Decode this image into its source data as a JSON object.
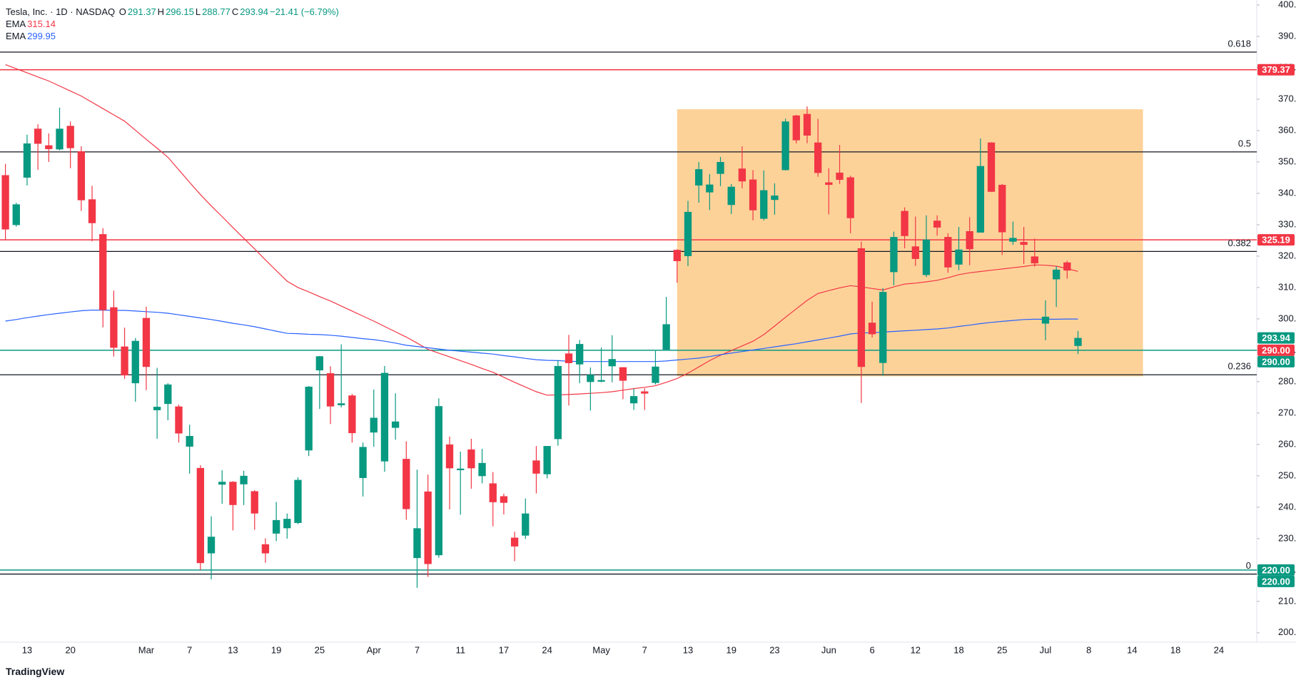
{
  "chart_data": {
    "type": "candlestick",
    "title": "Tesla, Inc. · 1D · NASDAQ",
    "ohlc_prefixes": [
      "O",
      "H",
      "L",
      "C"
    ],
    "change": "−21.41 (−6.79%)",
    "up_color": "#089981",
    "down_color": "#f23645",
    "categories": [
      null,
      null,
      "13",
      null,
      null,
      null,
      "20",
      null,
      null,
      null,
      null,
      null,
      null,
      "Mar",
      null,
      null,
      null,
      "7",
      null,
      null,
      null,
      "13",
      null,
      null,
      null,
      "19",
      null,
      null,
      null,
      "25",
      null,
      null,
      null,
      null,
      "Apr",
      null,
      null,
      null,
      "7",
      null,
      null,
      null,
      "11",
      null,
      null,
      null,
      "17",
      null,
      null,
      null,
      "24",
      null,
      null,
      null,
      null,
      "May",
      null,
      null,
      null,
      "7",
      null,
      null,
      null,
      "13",
      null,
      null,
      null,
      "19",
      null,
      null,
      null,
      "23",
      null,
      null,
      null,
      null,
      "Jun",
      null,
      null,
      null,
      "6",
      null,
      null,
      null,
      "12",
      null,
      null,
      null,
      "18",
      null,
      null,
      null,
      "25",
      null,
      null,
      null,
      "Jul",
      null,
      null,
      null,
      "8",
      null,
      null,
      null,
      "14",
      null,
      null,
      null,
      "18",
      null,
      null,
      null,
      "24",
      null,
      null,
      null
    ],
    "open": [
      345.8,
      329.9,
      345,
      360.6,
      355.3,
      354,
      361.5,
      353.4,
      338.1,
      327,
      303.7,
      291.2,
      279.5,
      300.3,
      270.9,
      272.9,
      272.1,
      259.3,
      252.5,
      225.3,
      247.2,
      248.1,
      247.3,
      245.1,
      228.2,
      231.6,
      233.3,
      234.98,
      258.1,
      283.6,
      282.7,
      272.5,
      275.6,
      249.3,
      263.8,
      254.6,
      265.3,
      255.4,
      223.8,
      245,
      224.7,
      260,
      251.8,
      258.4,
      249.9,
      247.6,
      243.5,
      230.3,
      230.96,
      254.9,
      250.5,
      261.7,
      288.98,
      285.5,
      279.9,
      280,
      284.9,
      284.6,
      273.1,
      276.9,
      279.6,
      290.2,
      321.99,
      320,
      342.5,
      340.3,
      346.2,
      336.3,
      347.9,
      344.4,
      331.9,
      337.9,
      347.4,
      364.8,
      365.3,
      356.2,
      343.5,
      346.6,
      345.1,
      322.5,
      298.8,
      285.96,
      314.9,
      334.4,
      323.1,
      313.97,
      331.3,
      326.1,
      317.3,
      327.95,
      327.5,
      356.2,
      342.7,
      324.6,
      324.5,
      319.9,
      298.5,
      312.6,
      317.99,
      291.37,
      null,
      null,
      null,
      null,
      null,
      null,
      null,
      null,
      null,
      null,
      null,
      null,
      null,
      null,
      null,
      null
    ],
    "high": [
      349.4,
      337,
      358.7,
      362,
      359.1,
      367.3,
      362.9,
      354.98,
      342.4,
      328.9,
      309,
      297.2,
      293.9,
      303.9,
      284.4,
      279.5,
      272.7,
      266.3,
      253.4,
      237.1,
      251.8,
      248.3,
      251.6,
      245.4,
      230.1,
      241.7,
      238,
      249.5,
      278.6,
      288.2,
      284.9,
      291.9,
      276.1,
      260.6,
      277.5,
      284.99,
      276.3,
      261,
      252,
      250.4,
      274.7,
      262.5,
      257.7,
      261.8,
      258.6,
      251.2,
      244.3,
      232.2,
      242.8,
      259.5,
      259.5,
      286.9,
      294.9,
      293.3,
      284.5,
      290.9,
      294.8,
      284.6,
      277.7,
      277.9,
      289.8,
      307,
      322.2,
      337.6,
      350,
      346.1,
      351.6,
      343,
      354.99,
      347.4,
      347.3,
      343.2,
      363.8,
      365,
      367.7,
      363.7,
      348,
      355.4,
      345.6,
      324.6,
      305.5,
      309.8,
      327.8,
      335.5,
      332.6,
      332.99,
      332.99,
      327.3,
      329.3,
      332.4,
      357.5,
      356.3,
      343,
      331,
      329.3,
      325.6,
      305.9,
      316.8,
      318.5,
      296.15,
      null,
      null,
      null,
      null,
      null,
      null,
      null,
      null,
      null,
      null,
      null,
      null,
      null,
      null,
      null,
      null
    ],
    "low": [
      325.1,
      329.4,
      342.5,
      347.5,
      350,
      353.7,
      348,
      334.4,
      324.7,
      297.3,
      288,
      280.9,
      273.6,
      277.3,
      261.8,
      267.7,
      260.6,
      250.7,
      220,
      217,
      241.1,
      232.6,
      240.7,
      232.8,
      222.3,
      229.2,
      230,
      234.6,
      256.3,
      271.3,
      266.5,
      271.8,
      260.6,
      243.4,
      259.3,
      251.3,
      261.5,
      236,
      214.3,
      217.8,
      223.9,
      239.3,
      237.6,
      245.9,
      247.6,
      233.9,
      237.7,
      222.8,
      229.9,
      244.4,
      249.2,
      259.6,
      272.4,
      279.5,
      270.8,
      279.8,
      279.8,
      274.4,
      271,
      271,
      279.1,
      290,
      311.5,
      316.8,
      337,
      334.7,
      342.3,
      333.4,
      341.6,
      331.4,
      331.4,
      333.2,
      347.3,
      355.9,
      356,
      345.3,
      333.3,
      343,
      327.3,
      273.2,
      294.1,
      281.9,
      310.7,
      322.5,
      316.9,
      313.3,
      326.5,
      314.7,
      315.5,
      317.1,
      327.5,
      340.4,
      320.4,
      323.6,
      317.5,
      316.6,
      293.2,
      303.8,
      312.8,
      288.77,
      null,
      null,
      null,
      null,
      null,
      null,
      null,
      null,
      null,
      null,
      null,
      null,
      null,
      null,
      null,
      null
    ],
    "close": [
      328.5,
      336.5,
      355.9,
      355.8,
      354.1,
      360.6,
      354.4,
      337.8,
      330.5,
      302.8,
      290.8,
      282,
      293,
      284.7,
      272,
      279.1,
      263.5,
      262.7,
      222.2,
      230.6,
      248.1,
      240.7,
      250,
      238,
      225.3,
      235.9,
      236.3,
      248.7,
      278.4,
      288.1,
      272.1,
      273.1,
      263.6,
      259.2,
      268.5,
      282.8,
      267.3,
      239.4,
      233.3,
      221.9,
      272.2,
      252.4,
      252.3,
      252.4,
      254.1,
      241.6,
      241.4,
      227.5,
      238,
      250.7,
      259.5,
      285,
      285.9,
      292,
      282.2,
      280.5,
      287.2,
      280.3,
      275.4,
      276.2,
      284.8,
      298.3,
      318.4,
      334.1,
      347.7,
      342.8,
      350,
      342.1,
      343.8,
      334.6,
      341,
      339.3,
      362.9,
      356.9,
      358.4,
      346.5,
      342.7,
      344.3,
      332.1,
      284.7,
      295.1,
      308.6,
      326.1,
      326.4,
      319.1,
      325.3,
      329.1,
      316.4,
      322.1,
      322.2,
      348.7,
      340.5,
      327.6,
      325.8,
      323.6,
      317.7,
      300.7,
      315.7,
      315.4,
      293.94,
      null,
      null,
      null,
      null,
      null,
      null,
      null,
      null,
      null,
      null,
      null,
      null,
      null,
      null,
      null,
      null
    ],
    "series": [
      {
        "name": "EMA",
        "color": "#f23645",
        "values": [
          381,
          379.7,
          378.4,
          377.1,
          375.8,
          374.2,
          372.6,
          371,
          369,
          367,
          365,
          363,
          360.1,
          357.2,
          354.4,
          351.5,
          347.5,
          343.5,
          339.6,
          336,
          332.6,
          329.1,
          325.7,
          322.3,
          318.8,
          315.4,
          312,
          310,
          308.6,
          307.1,
          305.7,
          304.1,
          302.5,
          300.9,
          299.3,
          297.6,
          295.9,
          294.2,
          292.3,
          290.3,
          289.1,
          287.9,
          286.7,
          285.5,
          284.2,
          283,
          281.4,
          279.8,
          278.3,
          276.8,
          275.7,
          275.8,
          275.9,
          276.1,
          276.3,
          276.5,
          276.8,
          277.3,
          277.8,
          278.2,
          278.7,
          279.8,
          281,
          282.7,
          284.7,
          286.7,
          288.4,
          289.9,
          291.4,
          292.9,
          295,
          297.7,
          300.5,
          303.2,
          305.9,
          308.1,
          309,
          309.9,
          310.6,
          310.2,
          309.7,
          309.2,
          310.2,
          311.1,
          311.4,
          311.8,
          312.3,
          313.1,
          314.1,
          314.7,
          315.1,
          315.5,
          315.9,
          316.3,
          316.7,
          317.2,
          317.1,
          316.8,
          316,
          315.14,
          null,
          null,
          null,
          null,
          null,
          null,
          null,
          null,
          null,
          null,
          null,
          null,
          null,
          null,
          null,
          null
        ]
      },
      {
        "name": "EMA",
        "color": "#2962ff",
        "values": [
          299.3,
          299.8,
          300.4,
          300.9,
          301.4,
          301.8,
          302.2,
          302.6,
          302.8,
          302.8,
          302.7,
          302.7,
          302.5,
          302.3,
          302.1,
          301.8,
          301.3,
          300.8,
          300.3,
          299.8,
          299.2,
          298.6,
          298.1,
          297.5,
          296.8,
          296.1,
          295.4,
          295.3,
          295.1,
          295,
          294.8,
          294.5,
          294.1,
          293.7,
          293.4,
          292.9,
          292.3,
          291.6,
          291.2,
          290.8,
          290.4,
          290,
          289.7,
          289.4,
          289.1,
          288.8,
          288.3,
          287.9,
          287.4,
          287,
          286.8,
          286.7,
          286.5,
          286.4,
          286.4,
          286.4,
          286.4,
          286.4,
          286.4,
          286.4,
          286.4,
          286.6,
          286.9,
          287.2,
          287.5,
          288,
          288.6,
          289.1,
          289.6,
          290.1,
          290.6,
          291.1,
          291.6,
          292.1,
          292.7,
          293.3,
          293.9,
          294.5,
          295.2,
          295.5,
          295.6,
          295.8,
          296,
          296.2,
          296.4,
          296.6,
          296.8,
          297.1,
          297.6,
          298,
          298.5,
          298.9,
          299.2,
          299.5,
          299.8,
          299.9,
          299.9,
          299.9,
          299.95,
          299.95,
          null,
          null,
          null,
          null,
          null,
          null,
          null,
          null,
          null,
          null,
          null,
          null,
          null,
          null,
          null,
          null
        ]
      }
    ],
    "ylim": [
      197,
      401.6
    ],
    "yticks": [
      {
        "value": 200,
        "label": "200.00"
      },
      {
        "value": 210,
        "label": "210.00"
      },
      {
        "value": 220,
        "label": "220.00"
      },
      {
        "value": 230,
        "label": "230.00"
      },
      {
        "value": 240,
        "label": "240.00"
      },
      {
        "value": 250,
        "label": "250.00"
      },
      {
        "value": 260,
        "label": "260.00"
      },
      {
        "value": 270,
        "label": "270.00"
      },
      {
        "value": 280,
        "label": "280.00"
      },
      {
        "value": 290,
        "label": "290.00"
      },
      {
        "value": 300,
        "label": "300.00"
      },
      {
        "value": 310,
        "label": "310.00"
      },
      {
        "value": 320,
        "label": "320.00"
      },
      {
        "value": 330,
        "label": "330.00"
      },
      {
        "value": 340,
        "label": "340.00"
      },
      {
        "value": 350,
        "label": "350.00"
      },
      {
        "value": 360,
        "label": "360.00"
      },
      {
        "value": 370,
        "label": "370.00"
      },
      {
        "value": 380,
        "label": "380.00"
      },
      {
        "value": 390,
        "label": "390.00"
      },
      {
        "value": 400,
        "label": "400.00"
      }
    ],
    "rectangle": {
      "x": [
        62,
        105
      ],
      "y": [
        281.7,
        366.8
      ],
      "color": "#fcc77f"
    },
    "fib_levels": {
      "values": [
        385,
        353.2,
        321.5,
        282.2,
        218.7
      ],
      "labels": [
        "0.618",
        "0.5",
        "0.382",
        "0.236",
        "0"
      ],
      "color": "#131722"
    },
    "hlines": [
      {
        "value": 379.37,
        "color": "#f23645"
      },
      {
        "value": 325.19,
        "color": "#f23645"
      },
      {
        "value": 290,
        "color": "#089981"
      },
      {
        "value": 220,
        "color": "#089981"
      }
    ],
    "price_labels": [
      {
        "value": 379.37,
        "label": "379.37",
        "color": "#f23645"
      },
      {
        "value": 325.19,
        "label": "325.19",
        "color": "#f23645"
      },
      {
        "value": 293.94,
        "label": "293.94",
        "color": "#089981"
      },
      {
        "value": 290,
        "label": "290.00",
        "color": "#f23645"
      },
      {
        "value": 290,
        "label": "290.00",
        "color": "#089981"
      },
      {
        "value": 220,
        "label": "220.00",
        "color": "#089981"
      },
      {
        "value": 220,
        "label": "220.00",
        "color": "#089981"
      }
    ]
  },
  "branding": "TradingView"
}
